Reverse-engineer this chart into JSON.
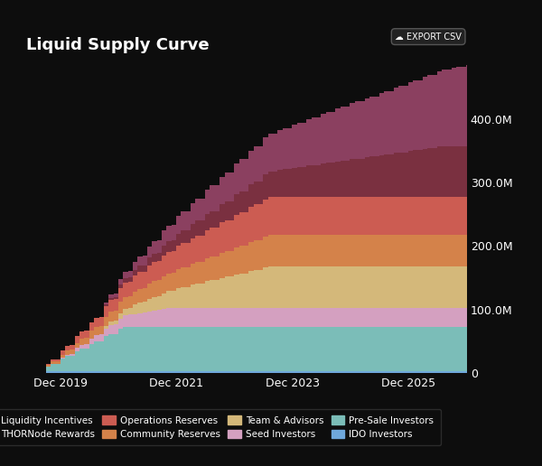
{
  "title": "Liquid Supply Curve",
  "background_color": "#0d0d0d",
  "text_color": "#ffffff",
  "x_ticks": [
    "Dec 2019",
    "Dec 2021",
    "Dec 2023",
    "Dec 2025"
  ],
  "x_tick_positions": [
    2019.92,
    2021.92,
    2023.92,
    2025.92
  ],
  "ylim": [
    0,
    500000000
  ],
  "yticks": [
    0,
    100000000,
    200000000,
    300000000,
    400000000
  ],
  "ytick_labels": [
    "0",
    "100.0M",
    "200.0M",
    "300.0M",
    "400.0M"
  ],
  "series": [
    {
      "label": "IDO Investors",
      "color": "#6fa8dc",
      "final_value": 3000000,
      "cliff_year": 2019.5,
      "vest_months": 3
    },
    {
      "label": "Pre-Sale Investors",
      "color": "#7bbdb8",
      "final_value": 70000000,
      "cliff_year": 2019.5,
      "vest_months": 18
    },
    {
      "label": "Seed Investors",
      "color": "#d4a0c0",
      "final_value": 30000000,
      "cliff_year": 2019.83,
      "vest_months": 24
    },
    {
      "label": "Team & Advisors",
      "color": "#d4b87a",
      "final_value": 65000000,
      "cliff_year": 2020.5,
      "vest_months": 36
    },
    {
      "label": "Community Reserves",
      "color": "#d4824a",
      "final_value": 50000000,
      "cliff_year": 2019.5,
      "vest_months": 48
    },
    {
      "label": "Operations Reserves",
      "color": "#cc5c52",
      "final_value": 60000000,
      "cliff_year": 2019.5,
      "vest_months": 48
    },
    {
      "label": "THORNode Rewards",
      "color": "#7a3040",
      "final_value": 80000000,
      "cliff_year": 2020.5,
      "vest_months": 72
    },
    {
      "label": "Liquidity Incentives",
      "color": "#8b4060",
      "final_value": 130000000,
      "cliff_year": 2020.5,
      "vest_months": 78
    }
  ],
  "legend": [
    {
      "label": "Liquidity Incentives",
      "color": "#8b4060"
    },
    {
      "label": "THORNode Rewards",
      "color": "#7a3040"
    },
    {
      "label": "Operations Reserves",
      "color": "#cc5c52"
    },
    {
      "label": "Community Reserves",
      "color": "#d4824a"
    },
    {
      "label": "Team & Advisors",
      "color": "#d4b87a"
    },
    {
      "label": "Seed Investors",
      "color": "#d4a0c0"
    },
    {
      "label": "Pre-Sale Investors",
      "color": "#7bbdb8"
    },
    {
      "label": "IDO Investors",
      "color": "#6fa8dc"
    }
  ]
}
